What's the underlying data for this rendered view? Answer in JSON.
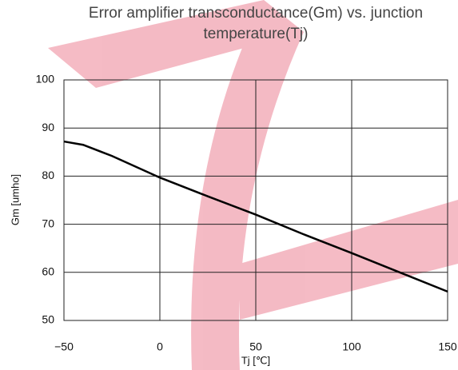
{
  "chart_data": {
    "type": "line",
    "title": "Error amplifier transconductance(Gm) vs. junction temperature(Tj)",
    "x_label": "Tj [℃]",
    "y_label": "Gm [umho]",
    "x": [
      -50,
      -40,
      -25,
      0,
      25,
      50,
      75,
      100,
      125,
      150
    ],
    "series": [
      {
        "name": "Gm",
        "color": "#000000",
        "values": [
          87.2,
          86.5,
          84.2,
          79.7,
          75.8,
          72,
          67.9,
          64,
          60,
          56
        ]
      }
    ],
    "xlim": [
      -50,
      150
    ],
    "xticks": [
      {
        "value": -50,
        "label": "−50"
      },
      0,
      50,
      100,
      150
    ],
    "ylim": [
      50,
      100
    ],
    "yticks": [
      50,
      60,
      70,
      80,
      90,
      100
    ],
    "grid": true
  }
}
